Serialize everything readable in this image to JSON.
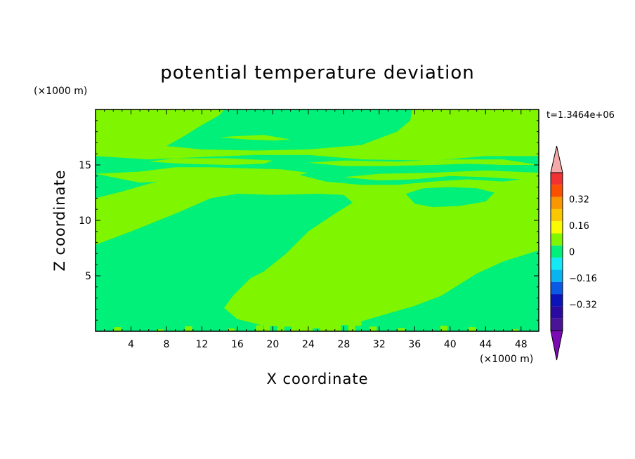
{
  "chart_data": {
    "type": "heatmap",
    "title": "potential temperature deviation",
    "xlabel": "X coordinate",
    "ylabel": "Z coordinate",
    "x_unit": "(×1000 m)",
    "y_unit": "(×1000 m)",
    "time_label": "t=1.3464e+06",
    "xlim": [
      0,
      50
    ],
    "ylim": [
      0,
      20
    ],
    "x_ticks": [
      4,
      8,
      12,
      16,
      20,
      24,
      28,
      32,
      36,
      40,
      44,
      48
    ],
    "y_ticks": [
      5,
      10,
      15
    ],
    "colorbar": {
      "levels": [
        -0.48,
        -0.4,
        -0.32,
        -0.24,
        -0.16,
        -0.08,
        0,
        0.08,
        0.16,
        0.24,
        0.32,
        0.4,
        0.48
      ],
      "labels": [
        "0.32",
        "0.16",
        "0",
        "−0.16",
        "−0.32"
      ],
      "label_values": [
        0.32,
        0.16,
        0,
        -0.16,
        -0.32
      ],
      "colors": [
        "#4a1496",
        "#2a0aa0",
        "#0a14b8",
        "#0a5ae6",
        "#0ab4f0",
        "#14e8f5",
        "#00f07a",
        "#80f500",
        "#fafa00",
        "#fac800",
        "#fa9600",
        "#fa5000",
        "#f03232"
      ],
      "over_color": "#f5a8a8",
      "under_color": "#7a0ab4"
    },
    "field_colors": {
      "positive": "#80f500",
      "negative": "#00f07a"
    },
    "regions_negative": [
      {
        "desc": "main cold tongue",
        "points": [
          [
            0,
            0
          ],
          [
            0,
            7.8
          ],
          [
            4,
            9
          ],
          [
            9,
            10.6
          ],
          [
            13,
            12
          ],
          [
            16,
            12.4
          ],
          [
            20,
            12.3
          ],
          [
            25,
            12.4
          ],
          [
            28,
            12.3
          ],
          [
            29,
            11.6
          ],
          [
            27,
            10.6
          ],
          [
            24,
            9
          ],
          [
            21.5,
            7
          ],
          [
            19,
            5.4
          ],
          [
            17.5,
            4.8
          ],
          [
            15.5,
            3.2
          ],
          [
            14.5,
            2.1
          ],
          [
            16,
            1.1
          ],
          [
            19,
            0.5
          ],
          [
            19,
            0
          ]
        ]
      },
      {
        "desc": "cold region right bottom",
        "points": [
          [
            30,
            0
          ],
          [
            30,
            0.9
          ],
          [
            33,
            1.6
          ],
          [
            36,
            2.3
          ],
          [
            39,
            3.2
          ],
          [
            43,
            5.2
          ],
          [
            46,
            6.3
          ],
          [
            50,
            7.3
          ],
          [
            50,
            0
          ]
        ]
      },
      {
        "desc": "upper right cold patch",
        "points": [
          [
            35,
            12.4
          ],
          [
            36,
            11.5
          ],
          [
            38,
            11.2
          ],
          [
            41,
            11.3
          ],
          [
            44,
            11.7
          ],
          [
            45,
            12.5
          ],
          [
            43,
            12.9
          ],
          [
            40,
            13
          ],
          [
            37,
            12.9
          ]
        ]
      },
      {
        "desc": "upper left shear band",
        "points": [
          [
            0,
            12
          ],
          [
            3,
            12.6
          ],
          [
            6,
            13.3
          ],
          [
            10,
            14
          ],
          [
            14,
            14.5
          ],
          [
            18,
            14.6
          ],
          [
            22,
            14.3
          ],
          [
            26,
            13.5
          ],
          [
            30,
            13.2
          ],
          [
            34,
            13.2
          ],
          [
            38,
            13.5
          ],
          [
            42,
            13.7
          ],
          [
            46,
            13.5
          ],
          [
            50,
            13.9
          ],
          [
            50,
            15.8
          ],
          [
            44,
            15.8
          ],
          [
            38,
            15.4
          ],
          [
            30,
            15.5
          ],
          [
            24,
            15.9
          ],
          [
            18,
            15.9
          ],
          [
            12,
            15.7
          ],
          [
            6,
            15.5
          ],
          [
            0,
            15.8
          ]
        ]
      },
      {
        "desc": "top cold area",
        "points": [
          [
            8,
            16.7
          ],
          [
            10,
            17.6
          ],
          [
            12,
            18.6
          ],
          [
            14,
            19.5
          ],
          [
            14.5,
            20
          ],
          [
            35.7,
            20
          ],
          [
            35.5,
            19
          ],
          [
            34,
            18
          ],
          [
            30,
            16.8
          ],
          [
            24,
            16.4
          ],
          [
            18,
            16.3
          ],
          [
            12,
            16.4
          ]
        ]
      }
    ],
    "regions_positive": [
      {
        "desc": "warm lens 1",
        "points": [
          [
            6,
            15.3
          ],
          [
            10,
            15.1
          ],
          [
            15,
            15.0
          ],
          [
            19,
            15.1
          ],
          [
            20,
            15.4
          ],
          [
            15,
            15.6
          ],
          [
            9,
            15.6
          ]
        ]
      },
      {
        "desc": "warm lens 2",
        "points": [
          [
            24,
            15.2
          ],
          [
            28,
            14.9
          ],
          [
            33,
            14.9
          ],
          [
            38,
            15.0
          ],
          [
            42,
            15.1
          ],
          [
            46,
            15.0
          ],
          [
            50,
            15.0
          ],
          [
            46,
            15.5
          ],
          [
            40,
            15.5
          ],
          [
            34,
            15.3
          ],
          [
            28,
            15.4
          ]
        ]
      },
      {
        "desc": "warm band",
        "points": [
          [
            0,
            14.2
          ],
          [
            5,
            14.4
          ],
          [
            9,
            14.8
          ],
          [
            13,
            14.8
          ],
          [
            17,
            14.7
          ],
          [
            21,
            14.6
          ],
          [
            24,
            14.3
          ],
          [
            22,
            13.9
          ],
          [
            18,
            13.9
          ],
          [
            14,
            13.9
          ],
          [
            10,
            13.6
          ],
          [
            5,
            13.4
          ]
        ]
      },
      {
        "desc": "warm band right",
        "points": [
          [
            28,
            13.9
          ],
          [
            32,
            13.6
          ],
          [
            36,
            13.7
          ],
          [
            40,
            14.0
          ],
          [
            44,
            13.9
          ],
          [
            48,
            13.7
          ],
          [
            50,
            13.8
          ],
          [
            50,
            14.3
          ],
          [
            44,
            14.5
          ],
          [
            38,
            14.3
          ],
          [
            32,
            14.2
          ]
        ]
      },
      {
        "desc": "warm top right",
        "points": [
          [
            35.7,
            20
          ],
          [
            35.6,
            19
          ],
          [
            36.5,
            18.2
          ],
          [
            38.5,
            17.6
          ],
          [
            41,
            17.4
          ],
          [
            44,
            17.3
          ],
          [
            47,
            17.6
          ],
          [
            50,
            17.5
          ],
          [
            50,
            20
          ]
        ]
      },
      {
        "desc": "warm streak",
        "points": [
          [
            14,
            17.5
          ],
          [
            16,
            17.6
          ],
          [
            19,
            17.7
          ],
          [
            22,
            17.3
          ],
          [
            20,
            17.2
          ],
          [
            17,
            17.3
          ]
        ]
      },
      {
        "desc": "warm under cold",
        "points": [
          [
            1,
            16.6
          ],
          [
            4,
            16.8
          ],
          [
            7,
            17.1
          ],
          [
            5,
            16.5
          ],
          [
            2,
            16.4
          ]
        ]
      }
    ]
  }
}
